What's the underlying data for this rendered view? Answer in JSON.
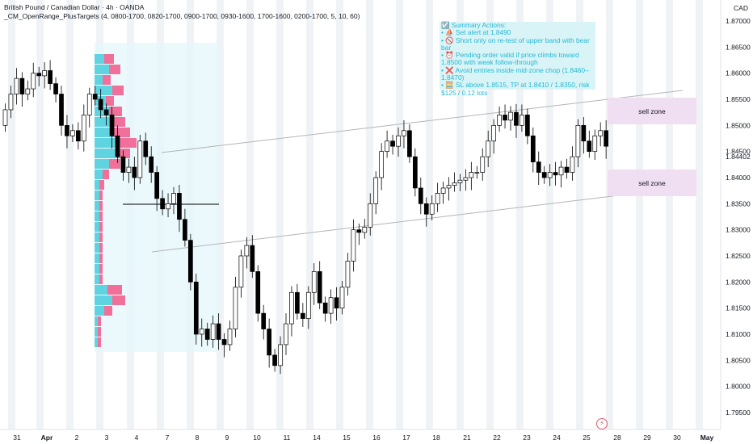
{
  "header": {
    "title": "British Pound / Canadian Dollar · 4h · OANDA",
    "indicator": "_CM_OpenRange_PlusTargets (4, 0800-1700, 0820-1700, 0900-1700, 0930-1600, 1700-1600, 0200-1700, 5, 10, 60)",
    "currency": "CAD"
  },
  "notes": {
    "lines": [
      "☑️ Summary Actions:",
      "• ⛵ Set alert at 1.8490",
      "• 🚫 Short only on re-test of upper band with bear bar",
      "• ⏰ Pending order valid if price climbs toward 1.8500 with weak follow-through",
      "• ❌ Avoid entries inside mid-zone chop (1.8460–1.8470)",
      "• 🧮 SL above 1.8515, TP at 1.8410 / 1.8350, risk $125 / 0.12 lots"
    ]
  },
  "zones": [
    {
      "label": "sell zone",
      "top_price": 1.855,
      "bottom_price": 1.85
    },
    {
      "label": "sell zone",
      "top_price": 1.841,
      "bottom_price": 1.8365
    }
  ],
  "badge": {
    "glyph": "⚡"
  },
  "colors": {
    "bull": "#ffffff",
    "bear": "#000000",
    "session": "#f0f3f6",
    "profile_up": "#5fd4e0",
    "profile_down": "#f0709a",
    "channel": "#b5b5b5"
  },
  "chart_data": {
    "type": "candlestick",
    "symbol": "British Pound / Canadian Dollar",
    "timeframe": "4h",
    "broker": "OANDA",
    "ylim": [
      1.7925,
      1.876
    ],
    "y_ticks": [
      "1.87000",
      "1.86500",
      "1.86000",
      "1.85500",
      "1.85000",
      "1.84500",
      "1.84000",
      "1.83500",
      "1.83000",
      "1.82500",
      "1.82000",
      "1.81500",
      "1.81000",
      "1.80500",
      "1.80000",
      "1.79500"
    ],
    "y_highlight": [
      "1.84402"
    ],
    "x_ticks": [
      "31",
      "Apr",
      "2",
      "3",
      "4",
      "7",
      "8",
      "9",
      "10",
      "11",
      "14",
      "15",
      "16",
      "17",
      "18",
      "21",
      "22",
      "23",
      "24",
      "25",
      "28",
      "29",
      "30",
      "May"
    ],
    "closes": [
      1.853,
      1.856,
      1.859,
      1.856,
      1.857,
      1.86,
      1.8595,
      1.8605,
      1.858,
      1.856,
      1.85,
      1.848,
      1.849,
      1.847,
      1.852,
      1.856,
      1.855,
      1.853,
      1.852,
      1.848,
      1.844,
      1.841,
      1.842,
      1.84,
      1.847,
      1.844,
      1.841,
      1.836,
      1.834,
      1.835,
      1.837,
      1.832,
      1.828,
      1.82,
      1.81,
      1.811,
      1.809,
      1.812,
      1.809,
      1.808,
      1.811,
      1.819,
      1.825,
      1.827,
      1.822,
      1.814,
      1.811,
      1.806,
      1.804,
      1.808,
      1.812,
      1.818,
      1.814,
      1.813,
      1.818,
      1.822,
      1.816,
      1.814,
      1.817,
      1.815,
      1.819,
      1.824,
      1.83,
      1.8295,
      1.8305,
      1.835,
      1.84,
      1.845,
      1.847,
      1.846,
      1.848,
      1.849,
      1.844,
      1.838,
      1.835,
      1.833,
      1.835,
      1.837,
      1.838,
      1.8385,
      1.839,
      1.8395,
      1.84,
      1.841,
      1.841,
      1.844,
      1.847,
      1.85,
      1.852,
      1.851,
      1.8525,
      1.85,
      1.852,
      1.848,
      1.843,
      1.841,
      1.84,
      1.841,
      1.8405,
      1.842,
      1.841,
      1.844,
      1.85,
      1.847,
      1.845,
      1.848,
      1.849,
      1.846
    ]
  }
}
